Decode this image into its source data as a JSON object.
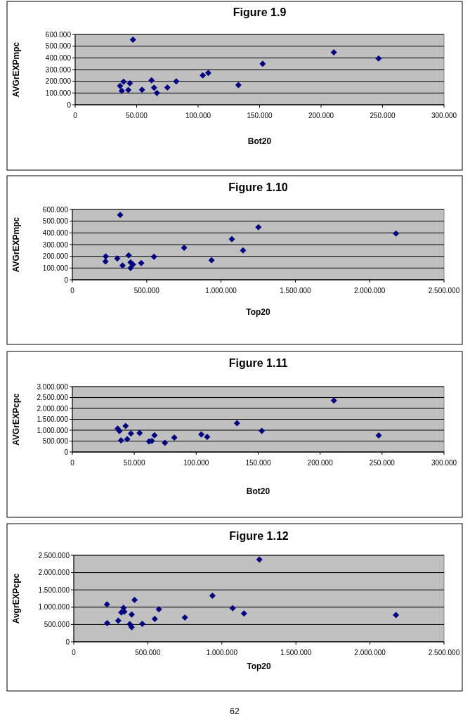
{
  "chart_data": [
    {
      "type": "scatter",
      "title": "Figure 1.9",
      "xlabel": "Bot20",
      "ylabel": "AVGrEXPmpc",
      "marker": "diamond",
      "grid": "y",
      "xlim": [
        0,
        300000
      ],
      "xticks": [
        {
          "value": 0,
          "label": "0"
        },
        {
          "value": 50000,
          "label": "50.000"
        },
        {
          "value": 100000,
          "label": "100.000"
        },
        {
          "value": 150000,
          "label": "150.000"
        },
        {
          "value": 200000,
          "label": "200.000"
        },
        {
          "value": 250000,
          "label": "250.000"
        },
        {
          "value": 300000,
          "label": "300.000"
        }
      ],
      "ylim": [
        0,
        600000
      ],
      "yticks": [
        {
          "value": 0,
          "label": "0"
        },
        {
          "value": 100000,
          "label": "100.000"
        },
        {
          "value": 200000,
          "label": "200.000"
        },
        {
          "value": 300000,
          "label": "300.000"
        },
        {
          "value": 400000,
          "label": "400.000"
        },
        {
          "value": 500000,
          "label": "500.000"
        },
        {
          "value": 600000,
          "label": "600.000"
        }
      ],
      "series": [
        {
          "color": "#000080",
          "x": [
            47000,
            36500,
            37900,
            39400,
            43200,
            44500,
            54400,
            62100,
            64200,
            66500,
            75000,
            82200,
            103800,
            108300,
            132800,
            152500,
            210400,
            246800
          ],
          "values": [
            555000,
            160000,
            119000,
            196000,
            126000,
            183000,
            128000,
            209000,
            145000,
            100000,
            147000,
            200000,
            251000,
            272000,
            168000,
            349000,
            447000,
            394000
          ]
        }
      ]
    },
    {
      "type": "scatter",
      "title": "Figure 1.10",
      "xlabel": "Top20",
      "ylabel": "AVGrEXPmpc",
      "marker": "diamond",
      "grid": "y",
      "xlim": [
        0,
        2500000
      ],
      "xticks": [
        {
          "value": 0,
          "label": "0"
        },
        {
          "value": 500000,
          "label": "500.000"
        },
        {
          "value": 1000000,
          "label": "1.000.000"
        },
        {
          "value": 1500000,
          "label": "1.500.000"
        },
        {
          "value": 2000000,
          "label": "2.000.000"
        },
        {
          "value": 2500000,
          "label": "2.500.000"
        }
      ],
      "ylim": [
        0,
        600000
      ],
      "yticks": [
        {
          "value": 0,
          "label": "0"
        },
        {
          "value": 100000,
          "label": "100.000"
        },
        {
          "value": 200000,
          "label": "200.000"
        },
        {
          "value": 300000,
          "label": "300.000"
        },
        {
          "value": 400000,
          "label": "400.000"
        },
        {
          "value": 500000,
          "label": "500.000"
        },
        {
          "value": 600000,
          "label": "600.000"
        }
      ],
      "series": [
        {
          "color": "#000080",
          "x": [
            321700,
            224500,
            223000,
            302500,
            379000,
            337600,
            391700,
            407600,
            391700,
            463400,
            549400,
            751600,
            936300,
            1073200,
            1148100,
            1251600,
            2176800
          ],
          "values": [
            554000,
            199000,
            156000,
            181000,
            209000,
            121000,
            148000,
            131000,
            101000,
            142000,
            197000,
            273000,
            166000,
            347000,
            251000,
            448000,
            394000
          ]
        }
      ]
    },
    {
      "type": "scatter",
      "title": "Figure 1.11",
      "xlabel": "Bot20",
      "ylabel": "AVGrEXPcpc",
      "marker": "diamond",
      "grid": "y",
      "xlim": [
        0,
        300000
      ],
      "xticks": [
        {
          "value": 0,
          "label": "0"
        },
        {
          "value": 50000,
          "label": "50.000"
        },
        {
          "value": 100000,
          "label": "100.000"
        },
        {
          "value": 150000,
          "label": "150.000"
        },
        {
          "value": 200000,
          "label": "200.000"
        },
        {
          "value": 250000,
          "label": "250.000"
        },
        {
          "value": 300000,
          "label": "300.000"
        }
      ],
      "ylim": [
        0,
        3000000
      ],
      "yticks": [
        {
          "value": 0,
          "label": "0"
        },
        {
          "value": 500000,
          "label": "500.000"
        },
        {
          "value": 1000000,
          "label": "1.000.000"
        },
        {
          "value": 1500000,
          "label": "1.500.000"
        },
        {
          "value": 2000000,
          "label": "2.000.000"
        },
        {
          "value": 2500000,
          "label": "2.500.000"
        },
        {
          "value": 3000000,
          "label": "3.000.000"
        }
      ],
      "series": [
        {
          "color": "#000080",
          "x": [
            36600,
            38000,
            43000,
            39300,
            44300,
            47300,
            54300,
            61900,
            64200,
            66300,
            74700,
            82300,
            104100,
            108800,
            132900,
            152900,
            211100,
            247300
          ],
          "values": [
            1070000,
            960000,
            1190000,
            530000,
            590000,
            850000,
            870000,
            480000,
            510000,
            770000,
            420000,
            660000,
            810000,
            690000,
            1320000,
            970000,
            2360000,
            760000
          ]
        }
      ]
    },
    {
      "type": "scatter",
      "title": "Figure 1.12",
      "xlabel": "Top20",
      "ylabel": "AvgrEXPcpc",
      "marker": "diamond",
      "grid": "y",
      "annotations": [
        "62"
      ],
      "xlim": [
        0,
        2500000
      ],
      "xticks": [
        {
          "value": 0,
          "label": "0"
        },
        {
          "value": 500000,
          "label": "500.000"
        },
        {
          "value": 1000000,
          "label": "1.000.000"
        },
        {
          "value": 1500000,
          "label": "1.500.000"
        },
        {
          "value": 2000000,
          "label": "2.000.000"
        },
        {
          "value": 2500000,
          "label": "2.500.000"
        }
      ],
      "ylim": [
        0,
        2500000
      ],
      "yticks": [
        {
          "value": 0,
          "label": "0"
        },
        {
          "value": 500000,
          "label": "500.000"
        },
        {
          "value": 1000000,
          "label": "1.000.000"
        },
        {
          "value": 1500000,
          "label": "1.500.000"
        },
        {
          "value": 2000000,
          "label": "2.000.000"
        },
        {
          "value": 2500000,
          "label": "2.500.000"
        }
      ],
      "series": [
        {
          "color": "#000080",
          "x": [
            224000,
            225600,
            300300,
            336000,
            321400,
            340900,
            410700,
            391200,
            378200,
            391200,
            462700,
            547100,
            574700,
            750000,
            936700,
            1073100,
            1149400,
            1253200,
            2175300
          ],
          "values": [
            1080000,
            540000,
            610000,
            980000,
            850000,
            870000,
            1210000,
            790000,
            510000,
            420000,
            520000,
            660000,
            940000,
            700000,
            1330000,
            970000,
            820000,
            2380000,
            770000
          ]
        }
      ]
    }
  ]
}
